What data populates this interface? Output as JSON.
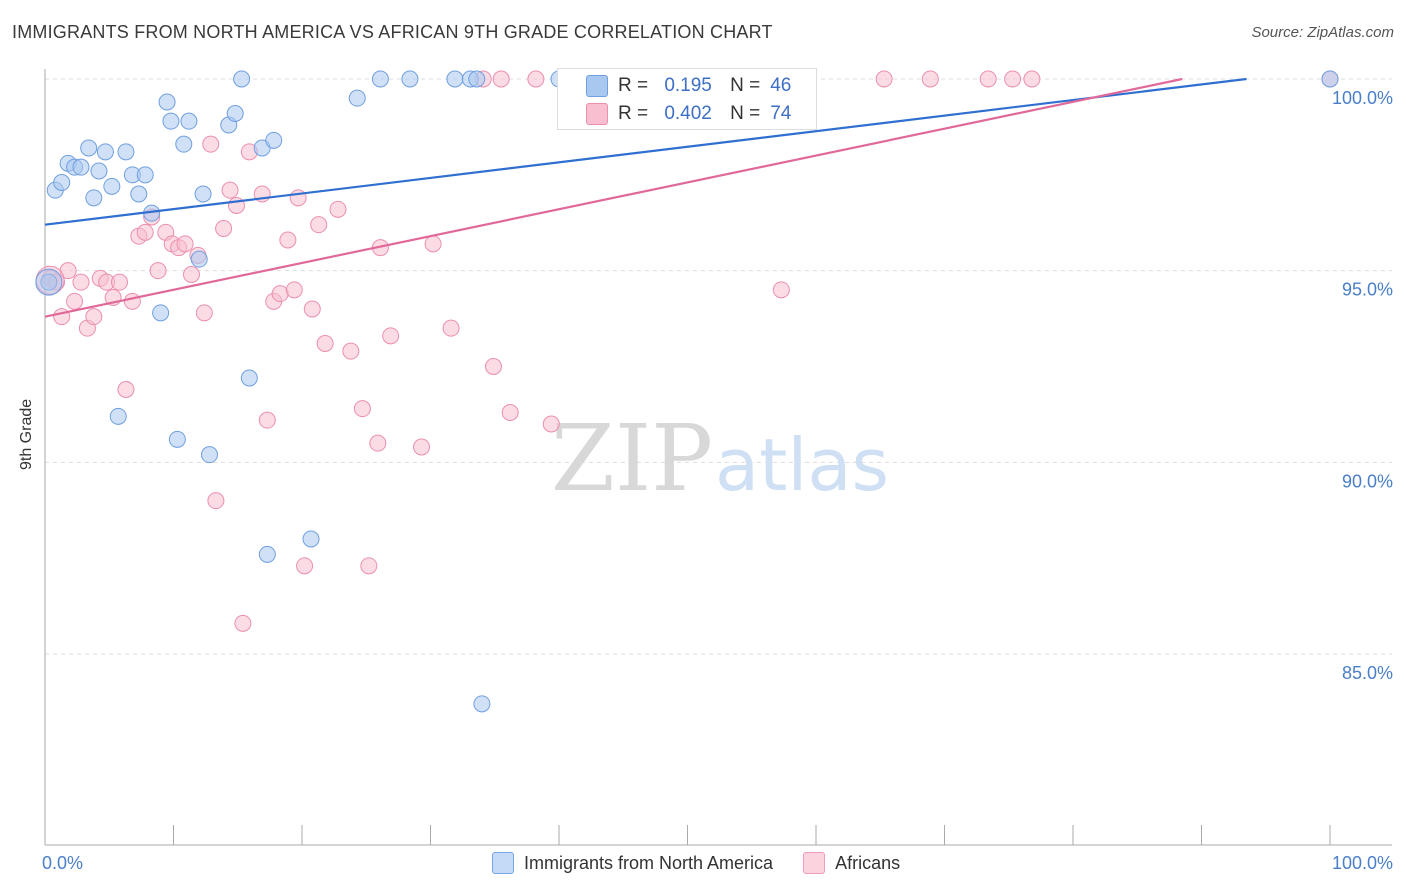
{
  "header": {
    "title": "IMMIGRANTS FROM NORTH AMERICA VS AFRICAN 9TH GRADE CORRELATION CHART",
    "source": "Source: ZipAtlas.com"
  },
  "watermark": {
    "zip": "ZIP",
    "atlas": "atlas"
  },
  "stats": {
    "r_label": "R =",
    "n_label": "N =",
    "rows": [
      {
        "r": "0.195",
        "n": "46",
        "color": "#a9c8f0",
        "border": "#6f9fe0"
      },
      {
        "r": "0.402",
        "n": "74",
        "color": "#f8bfd0",
        "border": "#eb8fae"
      }
    ]
  },
  "colors": {
    "series1_fill": "#a9c8f0",
    "series1_stroke": "#6f9fe0",
    "series1_line": "#2f6fd0",
    "series2_fill": "#f8bfd0",
    "series2_stroke": "#eb8fae",
    "series2_line": "#e0699a",
    "grid": "#dddddd",
    "axis_tick_label": "#4a7fc8"
  },
  "chart_data": {
    "type": "scatter",
    "title": "IMMIGRANTS FROM NORTH AMERICA VS AFRICAN 9TH GRADE CORRELATION CHART",
    "xlabel": "",
    "ylabel": "9th Grade",
    "xlim": [
      0,
      100
    ],
    "ylim": [
      80.5,
      100.8
    ],
    "x_tick_labels": [
      "0.0%",
      "100.0%"
    ],
    "y_ticks": [
      85,
      90,
      95,
      100
    ],
    "y_tick_labels": [
      "85.0%",
      "90.0%",
      "95.0%",
      "100.0%"
    ],
    "grid": "horizontal dashed",
    "legend": "bottom-center",
    "series": [
      {
        "name": "Immigrants from North America",
        "R": 0.195,
        "N": 46,
        "trend": [
          [
            0,
            96.2
          ],
          [
            93.5,
            100.0
          ]
        ],
        "points": [
          [
            0.3,
            94.7
          ],
          [
            0.8,
            97.1
          ],
          [
            1.3,
            97.3
          ],
          [
            1.8,
            97.8
          ],
          [
            2.3,
            97.7
          ],
          [
            2.8,
            97.7
          ],
          [
            3.4,
            98.2
          ],
          [
            3.8,
            96.9
          ],
          [
            4.2,
            97.6
          ],
          [
            4.7,
            98.1
          ],
          [
            5.2,
            97.2
          ],
          [
            5.7,
            91.2
          ],
          [
            6.3,
            98.1
          ],
          [
            6.8,
            97.5
          ],
          [
            7.3,
            97.0
          ],
          [
            7.8,
            97.5
          ],
          [
            8.3,
            96.5
          ],
          [
            9.0,
            93.9
          ],
          [
            9.5,
            99.4
          ],
          [
            9.8,
            98.9
          ],
          [
            10.3,
            90.6
          ],
          [
            10.8,
            98.3
          ],
          [
            11.2,
            98.9
          ],
          [
            12.0,
            95.3
          ],
          [
            12.3,
            97.0
          ],
          [
            12.8,
            90.2
          ],
          [
            14.3,
            98.8
          ],
          [
            14.8,
            99.1
          ],
          [
            15.3,
            100.0
          ],
          [
            15.9,
            92.2
          ],
          [
            16.9,
            98.2
          ],
          [
            17.3,
            87.6
          ],
          [
            17.8,
            98.4
          ],
          [
            20.7,
            88.0
          ],
          [
            24.3,
            99.5
          ],
          [
            26.1,
            100.0
          ],
          [
            28.4,
            100.0
          ],
          [
            31.9,
            100.0
          ],
          [
            33.1,
            100.0
          ],
          [
            33.6,
            100.0
          ],
          [
            34.0,
            83.7
          ],
          [
            40.0,
            100.0
          ],
          [
            44.5,
            100.0
          ],
          [
            46.4,
            100.0
          ],
          [
            47.6,
            100.0
          ],
          [
            100.0,
            100.0
          ]
        ]
      },
      {
        "name": "Africans",
        "R": 0.402,
        "N": 74,
        "trend": [
          [
            0,
            93.8
          ],
          [
            88.5,
            100.0
          ]
        ],
        "points": [
          [
            0.4,
            94.8
          ],
          [
            0.9,
            94.7
          ],
          [
            1.3,
            93.8
          ],
          [
            1.8,
            95.0
          ],
          [
            2.3,
            94.2
          ],
          [
            2.8,
            94.7
          ],
          [
            3.3,
            93.5
          ],
          [
            3.8,
            93.8
          ],
          [
            4.3,
            94.8
          ],
          [
            4.8,
            94.7
          ],
          [
            5.3,
            94.3
          ],
          [
            5.8,
            94.7
          ],
          [
            6.3,
            91.9
          ],
          [
            6.8,
            94.2
          ],
          [
            7.3,
            95.9
          ],
          [
            7.8,
            96.0
          ],
          [
            8.3,
            96.4
          ],
          [
            8.8,
            95.0
          ],
          [
            9.4,
            96.0
          ],
          [
            9.9,
            95.7
          ],
          [
            10.4,
            95.6
          ],
          [
            10.9,
            95.7
          ],
          [
            11.4,
            94.9
          ],
          [
            11.9,
            95.4
          ],
          [
            12.4,
            93.9
          ],
          [
            12.9,
            98.3
          ],
          [
            13.3,
            89.0
          ],
          [
            13.9,
            96.1
          ],
          [
            14.4,
            97.1
          ],
          [
            14.9,
            96.7
          ],
          [
            15.4,
            85.8
          ],
          [
            15.9,
            98.1
          ],
          [
            16.9,
            97.0
          ],
          [
            17.3,
            91.1
          ],
          [
            17.8,
            94.2
          ],
          [
            18.3,
            94.4
          ],
          [
            18.9,
            95.8
          ],
          [
            19.4,
            94.5
          ],
          [
            19.7,
            96.9
          ],
          [
            20.2,
            87.3
          ],
          [
            20.8,
            94.0
          ],
          [
            21.3,
            96.2
          ],
          [
            21.8,
            93.1
          ],
          [
            22.8,
            96.6
          ],
          [
            23.8,
            92.9
          ],
          [
            24.7,
            91.4
          ],
          [
            25.2,
            87.3
          ],
          [
            25.9,
            90.5
          ],
          [
            26.1,
            95.6
          ],
          [
            26.9,
            93.3
          ],
          [
            29.3,
            90.4
          ],
          [
            30.2,
            95.7
          ],
          [
            31.6,
            93.5
          ],
          [
            34.1,
            100.0
          ],
          [
            34.9,
            92.5
          ],
          [
            35.5,
            100.0
          ],
          [
            36.2,
            91.3
          ],
          [
            38.2,
            100.0
          ],
          [
            39.4,
            91.0
          ],
          [
            40.5,
            99.9
          ],
          [
            42.5,
            100.0
          ],
          [
            44.4,
            100.0
          ],
          [
            47.6,
            100.0
          ],
          [
            50.1,
            100.0
          ],
          [
            52.0,
            99.6
          ],
          [
            53.8,
            100.0
          ],
          [
            55.2,
            100.0
          ],
          [
            57.3,
            94.5
          ],
          [
            65.3,
            100.0
          ],
          [
            68.9,
            100.0
          ],
          [
            73.4,
            100.0
          ],
          [
            75.3,
            100.0
          ],
          [
            76.8,
            100.0
          ],
          [
            100.0,
            100.0
          ]
        ]
      }
    ]
  }
}
